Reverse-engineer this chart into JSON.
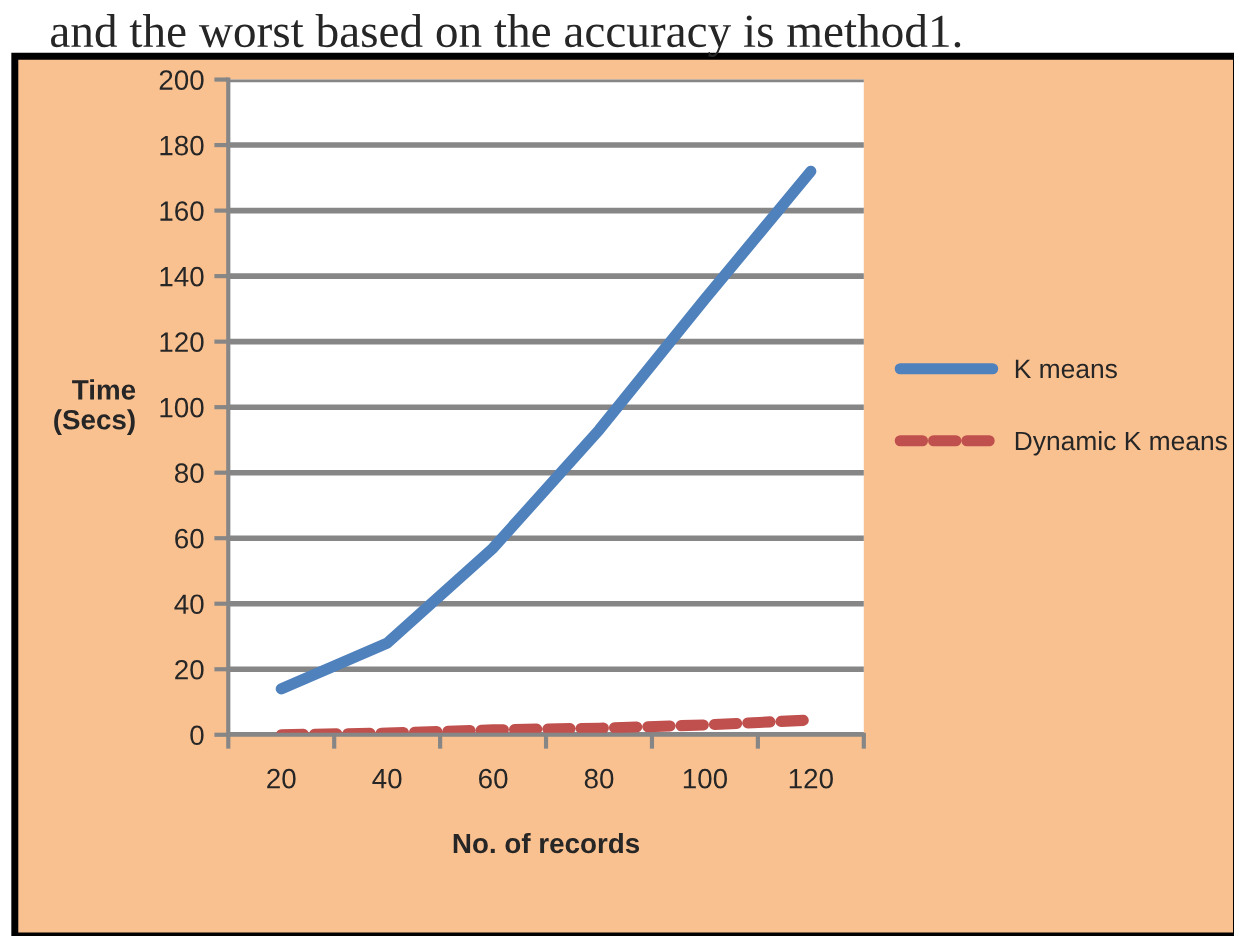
{
  "chart_data": {
    "type": "line",
    "xlabel": "No. of records",
    "ylabel": "Time\n(Secs)",
    "annotations": [
      "and the worst based on the accuracy is method1."
    ],
    "categories": [
      "20",
      "40",
      "60",
      "80",
      "100",
      "120"
    ],
    "series": [
      {
        "name": "K means",
        "color": "#4f81bd",
        "values": [
          14,
          28,
          57,
          93,
          133,
          172
        ],
        "line_style": "solid"
      },
      {
        "name": "Dynamic K means",
        "color": "#c0504d",
        "values": [
          0,
          0.5,
          1.5,
          2,
          3,
          4.5
        ],
        "line_style": "dashed"
      }
    ],
    "ylim": [
      0,
      200
    ],
    "yticks": [
      0,
      20,
      40,
      60,
      80,
      100,
      120,
      140,
      160,
      180,
      200
    ],
    "grid": "y",
    "legend": "right",
    "marker": "none"
  }
}
